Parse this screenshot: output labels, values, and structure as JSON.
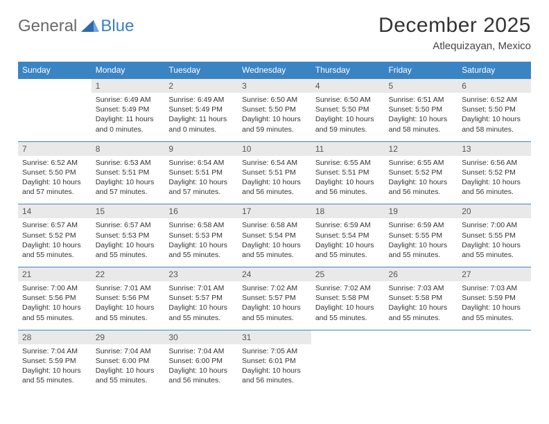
{
  "brand": {
    "part1": "General",
    "part2": "Blue"
  },
  "title": "December 2025",
  "location": "Atlequizayan, Mexico",
  "colors": {
    "header_bg": "#3b84c4",
    "header_text": "#ffffff",
    "daynum_bg": "#e9e9e9",
    "page_bg": "#ffffff",
    "text": "#333333",
    "brand_gray": "#6a6a6a",
    "brand_blue": "#3b7fc4"
  },
  "day_headers": [
    "Sunday",
    "Monday",
    "Tuesday",
    "Wednesday",
    "Thursday",
    "Friday",
    "Saturday"
  ],
  "weeks": [
    {
      "nums": [
        "",
        "1",
        "2",
        "3",
        "4",
        "5",
        "6"
      ],
      "cells": [
        null,
        {
          "sr": "6:49 AM",
          "ss": "5:49 PM",
          "dl": "11 hours and 0 minutes."
        },
        {
          "sr": "6:49 AM",
          "ss": "5:49 PM",
          "dl": "11 hours and 0 minutes."
        },
        {
          "sr": "6:50 AM",
          "ss": "5:50 PM",
          "dl": "10 hours and 59 minutes."
        },
        {
          "sr": "6:50 AM",
          "ss": "5:50 PM",
          "dl": "10 hours and 59 minutes."
        },
        {
          "sr": "6:51 AM",
          "ss": "5:50 PM",
          "dl": "10 hours and 58 minutes."
        },
        {
          "sr": "6:52 AM",
          "ss": "5:50 PM",
          "dl": "10 hours and 58 minutes."
        }
      ]
    },
    {
      "nums": [
        "7",
        "8",
        "9",
        "10",
        "11",
        "12",
        "13"
      ],
      "cells": [
        {
          "sr": "6:52 AM",
          "ss": "5:50 PM",
          "dl": "10 hours and 57 minutes."
        },
        {
          "sr": "6:53 AM",
          "ss": "5:51 PM",
          "dl": "10 hours and 57 minutes."
        },
        {
          "sr": "6:54 AM",
          "ss": "5:51 PM",
          "dl": "10 hours and 57 minutes."
        },
        {
          "sr": "6:54 AM",
          "ss": "5:51 PM",
          "dl": "10 hours and 56 minutes."
        },
        {
          "sr": "6:55 AM",
          "ss": "5:51 PM",
          "dl": "10 hours and 56 minutes."
        },
        {
          "sr": "6:55 AM",
          "ss": "5:52 PM",
          "dl": "10 hours and 56 minutes."
        },
        {
          "sr": "6:56 AM",
          "ss": "5:52 PM",
          "dl": "10 hours and 56 minutes."
        }
      ]
    },
    {
      "nums": [
        "14",
        "15",
        "16",
        "17",
        "18",
        "19",
        "20"
      ],
      "cells": [
        {
          "sr": "6:57 AM",
          "ss": "5:52 PM",
          "dl": "10 hours and 55 minutes."
        },
        {
          "sr": "6:57 AM",
          "ss": "5:53 PM",
          "dl": "10 hours and 55 minutes."
        },
        {
          "sr": "6:58 AM",
          "ss": "5:53 PM",
          "dl": "10 hours and 55 minutes."
        },
        {
          "sr": "6:58 AM",
          "ss": "5:54 PM",
          "dl": "10 hours and 55 minutes."
        },
        {
          "sr": "6:59 AM",
          "ss": "5:54 PM",
          "dl": "10 hours and 55 minutes."
        },
        {
          "sr": "6:59 AM",
          "ss": "5:55 PM",
          "dl": "10 hours and 55 minutes."
        },
        {
          "sr": "7:00 AM",
          "ss": "5:55 PM",
          "dl": "10 hours and 55 minutes."
        }
      ]
    },
    {
      "nums": [
        "21",
        "22",
        "23",
        "24",
        "25",
        "26",
        "27"
      ],
      "cells": [
        {
          "sr": "7:00 AM",
          "ss": "5:56 PM",
          "dl": "10 hours and 55 minutes."
        },
        {
          "sr": "7:01 AM",
          "ss": "5:56 PM",
          "dl": "10 hours and 55 minutes."
        },
        {
          "sr": "7:01 AM",
          "ss": "5:57 PM",
          "dl": "10 hours and 55 minutes."
        },
        {
          "sr": "7:02 AM",
          "ss": "5:57 PM",
          "dl": "10 hours and 55 minutes."
        },
        {
          "sr": "7:02 AM",
          "ss": "5:58 PM",
          "dl": "10 hours and 55 minutes."
        },
        {
          "sr": "7:03 AM",
          "ss": "5:58 PM",
          "dl": "10 hours and 55 minutes."
        },
        {
          "sr": "7:03 AM",
          "ss": "5:59 PM",
          "dl": "10 hours and 55 minutes."
        }
      ]
    },
    {
      "nums": [
        "28",
        "29",
        "30",
        "31",
        "",
        "",
        ""
      ],
      "cells": [
        {
          "sr": "7:04 AM",
          "ss": "5:59 PM",
          "dl": "10 hours and 55 minutes."
        },
        {
          "sr": "7:04 AM",
          "ss": "6:00 PM",
          "dl": "10 hours and 55 minutes."
        },
        {
          "sr": "7:04 AM",
          "ss": "6:00 PM",
          "dl": "10 hours and 56 minutes."
        },
        {
          "sr": "7:05 AM",
          "ss": "6:01 PM",
          "dl": "10 hours and 56 minutes."
        },
        null,
        null,
        null
      ]
    }
  ]
}
